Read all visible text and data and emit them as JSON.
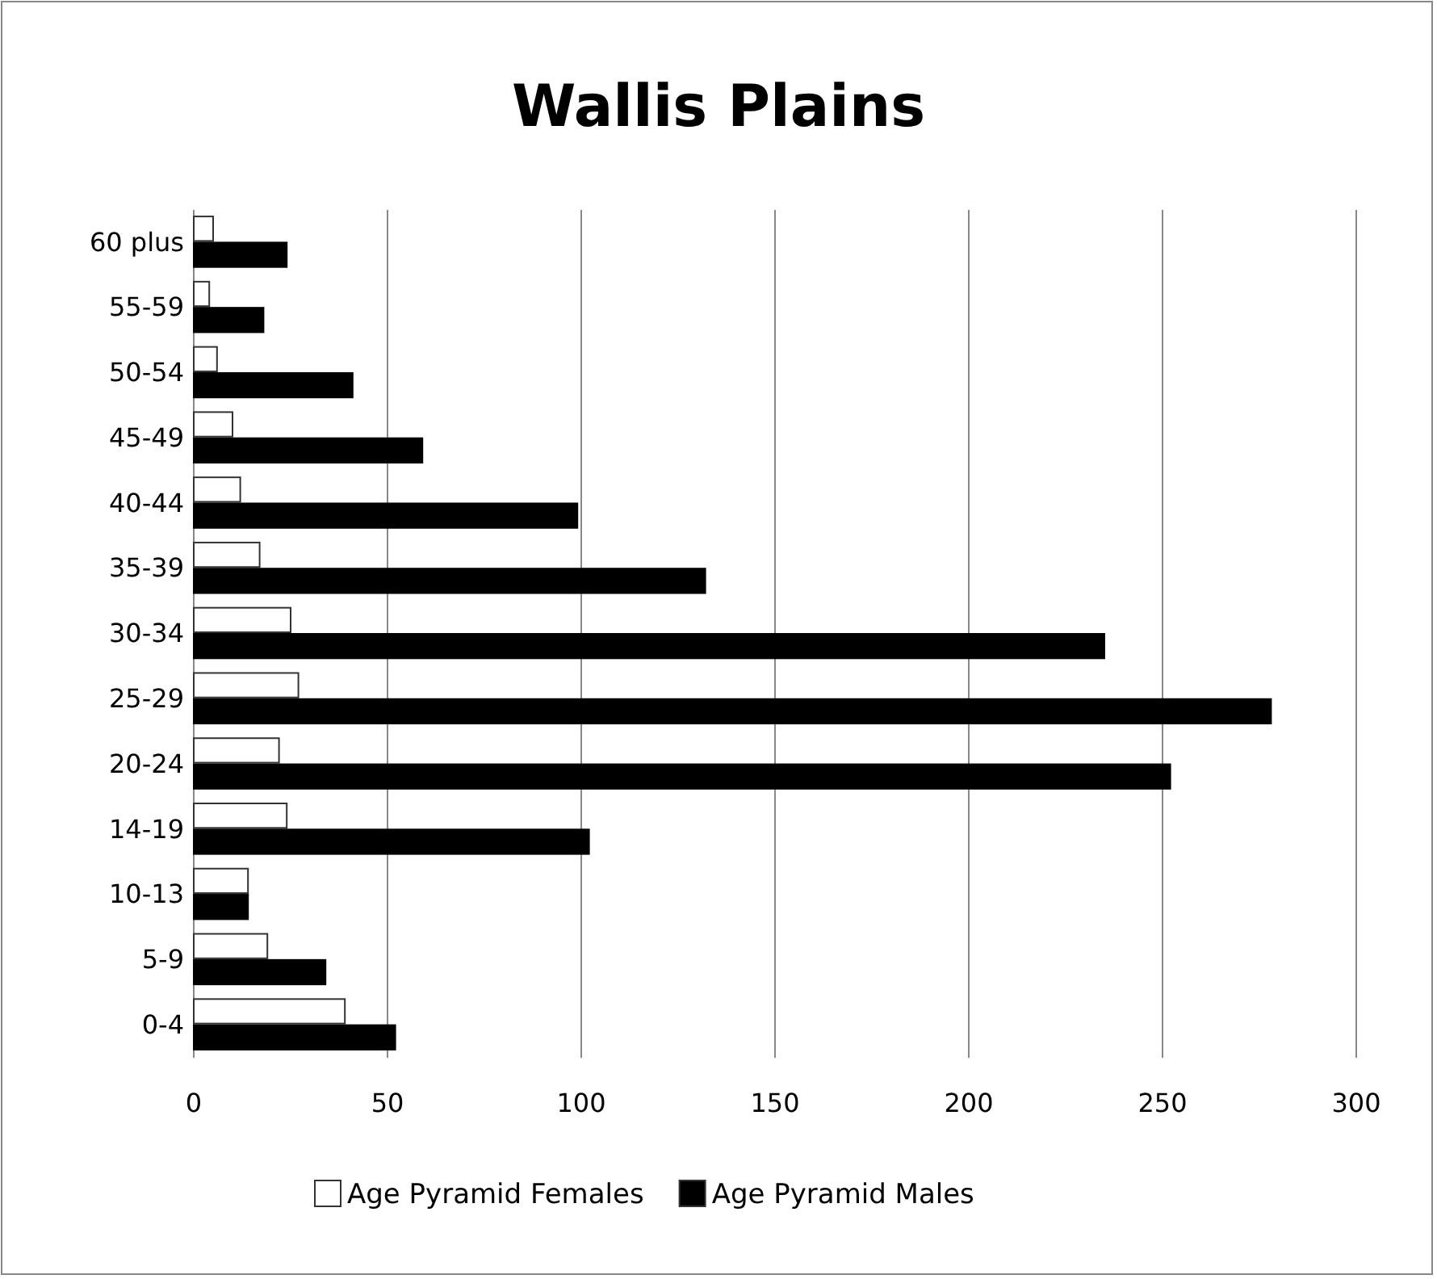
{
  "chart_data": {
    "type": "bar",
    "orientation": "horizontal",
    "title": "Wallis Plains",
    "categories": [
      "60 plus",
      "55-59",
      "50-54",
      "45-49",
      "40-44",
      "35-39",
      "30-34",
      "25-29",
      "20-24",
      "14-19",
      "10-13",
      "5-9",
      "0-4"
    ],
    "series": [
      {
        "name": "Age Pyramid Females",
        "color": "#ffffff",
        "values": [
          5,
          4,
          6,
          10,
          12,
          17,
          25,
          27,
          22,
          24,
          14,
          19,
          39
        ]
      },
      {
        "name": "Age Pyramid Males",
        "color": "#000000",
        "values": [
          24,
          18,
          41,
          59,
          99,
          132,
          235,
          278,
          252,
          102,
          14,
          34,
          52
        ]
      }
    ],
    "xlim": [
      0,
      300
    ],
    "xticks": [
      0,
      50,
      100,
      150,
      200,
      250,
      300
    ],
    "grid": "x",
    "legend": "bottom"
  }
}
